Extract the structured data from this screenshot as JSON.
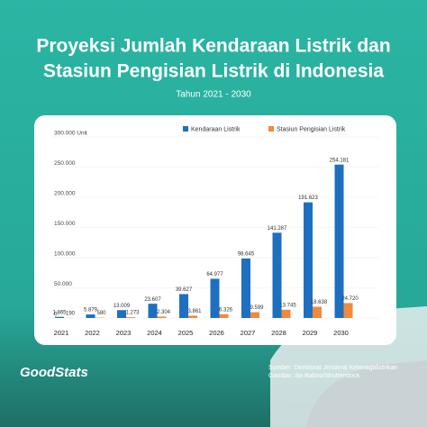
{
  "chart_data": {
    "type": "bar",
    "title": [
      "Proyeksi Jumlah Kendaraan Listrik dan",
      "Stasiun Pengisian Listrik di Indonesia"
    ],
    "subtitle": "Tahun 2021 - 2030",
    "categories": [
      "2021",
      "2022",
      "2023",
      "2024",
      "2025",
      "2026",
      "2027",
      "2028",
      "2029",
      "2030"
    ],
    "series": [
      {
        "name": "Kendaraan Listrik",
        "color": "#1f6fc0",
        "values": [
          1865,
          5879,
          13009,
          23607,
          39627,
          64977,
          98645,
          141287,
          191623,
          254181
        ],
        "value_labels": [
          "1.865",
          "5.879",
          "13.009",
          "23.607",
          "39.627",
          "64.977",
          "98.645",
          "141.287",
          "191.623",
          "254.181"
        ]
      },
      {
        "name": "Stasiun Pengisian Listrik",
        "color": "#f08a3c",
        "values": [
          190,
          580,
          1273,
          2304,
          3861,
          6326,
          9599,
          13745,
          18638,
          24720
        ],
        "value_labels": [
          "190",
          "580",
          "1.273",
          "2.304",
          "3.861",
          "6.326",
          "9.599",
          "13.745",
          "18.638",
          "24.720"
        ]
      }
    ],
    "ylim": [
      0,
      300000
    ],
    "yticks": [
      0,
      {
        "value": 50000,
        "label": "50.000"
      },
      {
        "value": 100000,
        "label": "100.000"
      },
      {
        "value": 150000,
        "label": "150.000"
      },
      {
        "value": 200000,
        "label": "200.000"
      },
      {
        "value": 250000,
        "label": "250.000"
      },
      {
        "value": 300000,
        "label": "300.000 Unit"
      }
    ],
    "grid": true,
    "legend": "top-right",
    "source": [
      "Sumber: Direktorat Jenderal Ketenagalistrikan",
      "Gambar: Ilia Baboo/Shutterstock"
    ],
    "brand": "GoodStats"
  }
}
